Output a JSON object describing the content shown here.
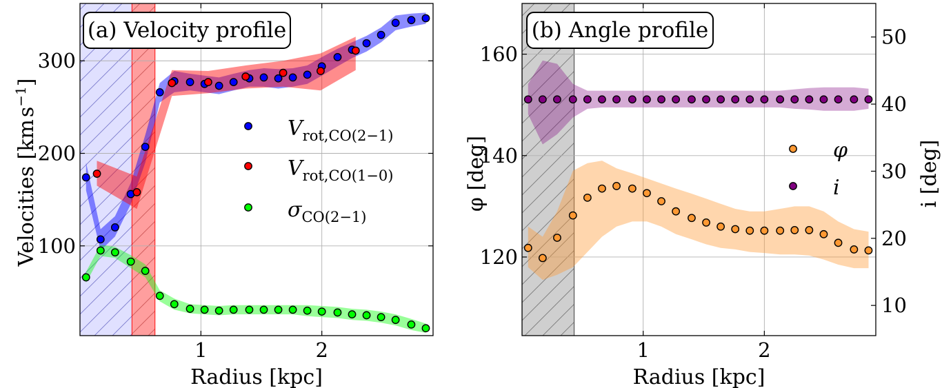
{
  "chart_data": [
    {
      "type": "scatter",
      "title": "(a) Velocity profile",
      "xlabel": "Radius [kpc]",
      "ylabel_main": "Velocities [km",
      "ylabel_s": "s",
      "ylabel_exp": "−1",
      "ylabel_close": "]",
      "xlim": [
        0.0,
        2.92
      ],
      "ylim": [
        3,
        362
      ],
      "xticks": [
        1,
        2
      ],
      "yticks": [
        100,
        200,
        300
      ],
      "grid": true,
      "shaded_regions": [
        {
          "x0": 0.0,
          "x1": 0.43,
          "color": "#0000ff",
          "hatched": true
        },
        {
          "x0": 0.43,
          "x1": 0.62,
          "color": "#ff0000",
          "hatched": true
        }
      ],
      "legend_position": "center-right",
      "legend": [
        {
          "symbol": "V",
          "sub": "rot,CO(2−1)",
          "color": "#0000ff"
        },
        {
          "symbol": "V",
          "sub": "rot,CO(1−0)",
          "color": "#ff0000"
        },
        {
          "symbol": "σ",
          "sub": "CO(2−1)",
          "color": "#00ff00"
        }
      ],
      "series": [
        {
          "color": "#0000ff",
          "x": [
            0.05,
            0.17,
            0.29,
            0.42,
            0.54,
            0.66,
            0.78,
            0.91,
            1.03,
            1.15,
            1.27,
            1.4,
            1.52,
            1.64,
            1.76,
            1.88,
            2.0,
            2.13,
            2.25,
            2.37,
            2.49,
            2.61,
            2.74,
            2.86
          ],
          "y": [
            174,
            107,
            120,
            156,
            207,
            266,
            278,
            277,
            275,
            273,
            277,
            281,
            282,
            281,
            282,
            285,
            294,
            304,
            312,
            319,
            328,
            341,
            344,
            346
          ],
          "band_lo": [
            160,
            95,
            110,
            145,
            190,
            255,
            266,
            268,
            266,
            264,
            268,
            272,
            272,
            270,
            272,
            275,
            284,
            294,
            303,
            310,
            320,
            333,
            337,
            340
          ],
          "band_hi": [
            190,
            118,
            132,
            168,
            220,
            276,
            289,
            286,
            284,
            282,
            286,
            290,
            292,
            291,
            292,
            295,
            304,
            313,
            320,
            327,
            336,
            349,
            351,
            352
          ]
        },
        {
          "color": "#ff0000",
          "x": [
            0.14,
            0.47,
            0.76,
            1.06,
            1.37,
            1.68,
            1.99,
            2.28
          ],
          "y": [
            178,
            158,
            276,
            277,
            283,
            287,
            289,
            311
          ],
          "band_lo": [
            165,
            140,
            262,
            265,
            270,
            272,
            268,
            290
          ],
          "band_hi": [
            192,
            175,
            290,
            289,
            295,
            300,
            308,
            326
          ]
        },
        {
          "color": "#00ff00",
          "x": [
            0.05,
            0.17,
            0.29,
            0.42,
            0.54,
            0.66,
            0.78,
            0.91,
            1.03,
            1.15,
            1.27,
            1.4,
            1.52,
            1.64,
            1.76,
            1.88,
            2.0,
            2.13,
            2.25,
            2.37,
            2.49,
            2.61,
            2.74,
            2.86
          ],
          "y": [
            66,
            95,
            93,
            83,
            73,
            46,
            37,
            32,
            31,
            30,
            31,
            31,
            31,
            31,
            31,
            30,
            29,
            28,
            26,
            25,
            23,
            20,
            15,
            11
          ],
          "band_lo": [
            60,
            89,
            87,
            76,
            66,
            40,
            31,
            27,
            26,
            25,
            26,
            26,
            26,
            26,
            26,
            24,
            23,
            22,
            20,
            19,
            17,
            14,
            9,
            6
          ],
          "band_hi": [
            72,
            101,
            99,
            90,
            80,
            52,
            43,
            37,
            36,
            35,
            36,
            36,
            36,
            36,
            36,
            36,
            35,
            34,
            32,
            31,
            29,
            26,
            21,
            16
          ]
        }
      ]
    },
    {
      "type": "scatter",
      "title": "(b) Angle profile",
      "xlabel": "Radius [kpc]",
      "ylabel_left": "φ [deg]",
      "ylabel_right": "i [deg]",
      "xlim": [
        0.0,
        2.92
      ],
      "ylim_left": [
        104.5,
        170
      ],
      "ylim_right": [
        5.5,
        55
      ],
      "xticks": [
        1,
        2
      ],
      "yticks_left": [
        120,
        140,
        160
      ],
      "yticks_right": [
        10,
        20,
        30,
        40,
        50
      ],
      "grid": true,
      "shaded_regions": [
        {
          "x0": 0.0,
          "x1": 0.43,
          "color": "#808080",
          "hatched": true
        }
      ],
      "legend_position": "center-right",
      "legend": [
        {
          "symbol": "φ",
          "color": "#ff9933"
        },
        {
          "symbol": "i",
          "color": "#800080"
        }
      ],
      "series": [
        {
          "color": "#ff9933",
          "axis": "left",
          "x": [
            0.05,
            0.17,
            0.29,
            0.42,
            0.54,
            0.66,
            0.78,
            0.91,
            1.03,
            1.15,
            1.27,
            1.4,
            1.52,
            1.64,
            1.76,
            1.88,
            2.0,
            2.13,
            2.25,
            2.37,
            2.49,
            2.61,
            2.74,
            2.86
          ],
          "y": [
            121.8,
            119.8,
            123.8,
            128.2,
            131.7,
            133.5,
            134.0,
            133.5,
            132.6,
            131.0,
            129.0,
            127.7,
            126.8,
            126.0,
            125.5,
            125.2,
            125.2,
            125.2,
            125.3,
            125.3,
            124.5,
            122.8,
            121.5,
            121.3
          ],
          "band_lo": [
            118.0,
            115.5,
            116.5,
            118.0,
            121.0,
            124.0,
            126.0,
            127.0,
            127.0,
            126.0,
            124.5,
            123.5,
            122.5,
            121.8,
            121.5,
            121.0,
            120.8,
            120.5,
            120.5,
            120.3,
            119.5,
            118.5,
            117.8,
            117.8
          ],
          "band_hi": [
            126.0,
            124.0,
            129.0,
            137.0,
            138.5,
            139.0,
            137.5,
            136.5,
            135.5,
            134.5,
            133.5,
            132.5,
            131.5,
            130.5,
            129.5,
            129.0,
            129.0,
            129.5,
            130.0,
            130.0,
            129.0,
            127.0,
            125.5,
            125.0
          ]
        },
        {
          "color": "#800080",
          "axis": "right",
          "x": [
            0.05,
            0.17,
            0.29,
            0.42,
            0.54,
            0.66,
            0.78,
            0.91,
            1.03,
            1.15,
            1.27,
            1.4,
            1.52,
            1.64,
            1.76,
            1.88,
            2.0,
            2.13,
            2.25,
            2.37,
            2.49,
            2.61,
            2.74,
            2.86
          ],
          "y": [
            40.7,
            40.7,
            40.7,
            40.7,
            40.7,
            40.7,
            40.7,
            40.7,
            40.7,
            40.7,
            40.7,
            40.7,
            40.7,
            40.7,
            40.7,
            40.7,
            40.7,
            40.7,
            40.7,
            40.7,
            40.7,
            40.7,
            40.7,
            40.7
          ],
          "band_lo": [
            38.5,
            34.0,
            35.5,
            38.0,
            39.3,
            39.5,
            39.5,
            39.5,
            39.5,
            39.5,
            39.5,
            39.5,
            39.5,
            39.5,
            39.5,
            39.5,
            39.5,
            39.5,
            39.3,
            39.2,
            39.0,
            39.0,
            39.0,
            39.3
          ],
          "band_hi": [
            43.0,
            46.5,
            46.0,
            43.0,
            42.0,
            42.0,
            42.0,
            42.0,
            42.0,
            42.0,
            42.0,
            42.0,
            42.0,
            42.0,
            42.0,
            42.0,
            42.0,
            42.0,
            42.2,
            42.4,
            42.5,
            42.5,
            42.5,
            42.3
          ]
        }
      ]
    }
  ]
}
